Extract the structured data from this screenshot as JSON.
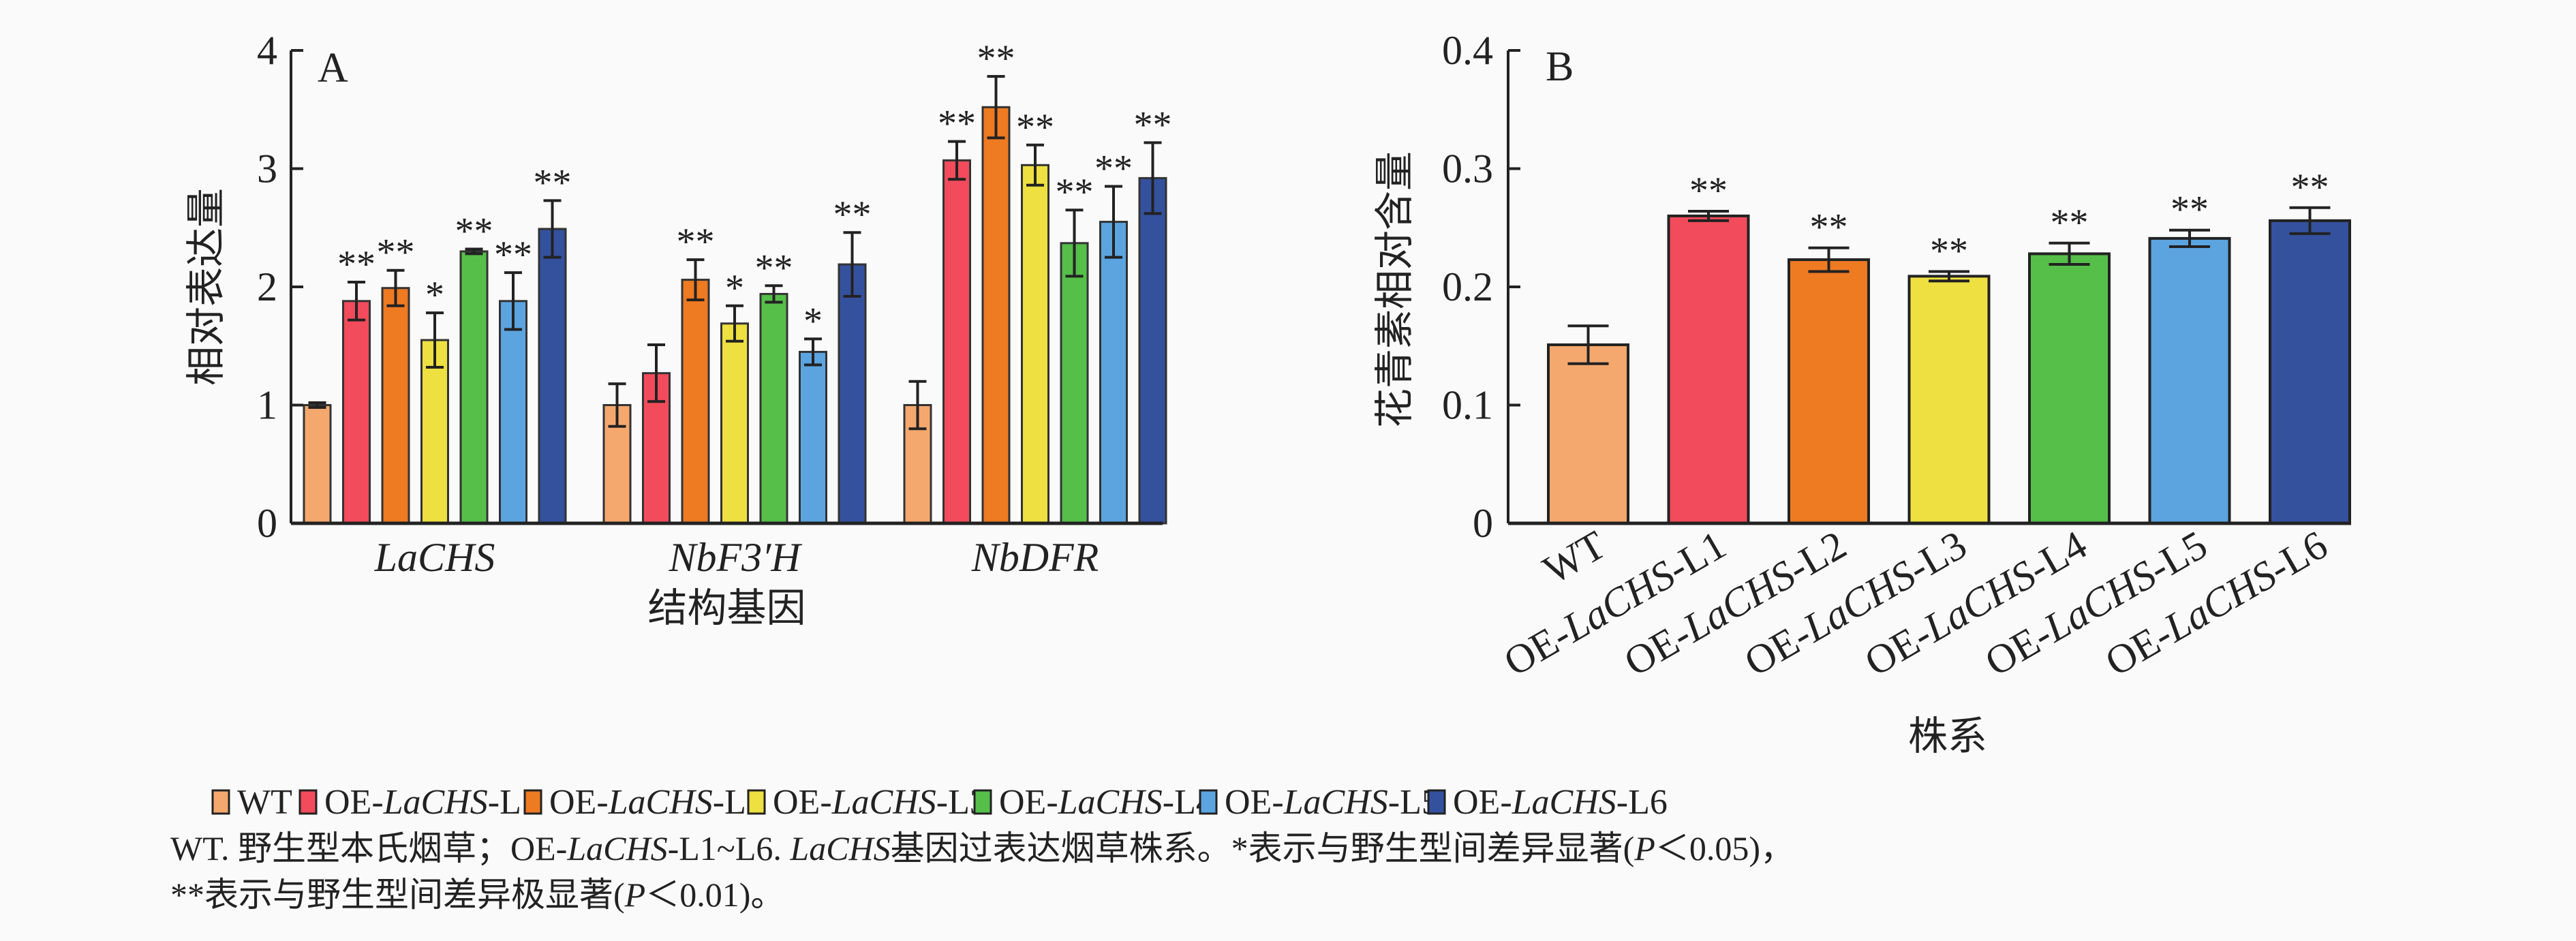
{
  "colors": {
    "WT": "#F5A86E",
    "OE-LaCHS-L1": "#F24B5B",
    "OE-LaCHS-L2": "#EE7A22",
    "OE-LaCHS-L3": "#EEE040",
    "OE-LaCHS-L4": "#55BF4A",
    "OE-LaCHS-L5": "#5BA4E0",
    "OE-LaCHS-L6": "#34519E"
  },
  "chart_data": [
    {
      "type": "bar",
      "panel_label": "A",
      "xlabel": "结构基因",
      "ylabel": "相对表达量",
      "ylim": [
        0,
        4
      ],
      "yticks": [
        0,
        1,
        2,
        3,
        4
      ],
      "categories": [
        "LaCHS",
        "NbF3′H",
        "NbDFR"
      ],
      "series": [
        {
          "name": "WT",
          "values": [
            1.0,
            1.0,
            1.0
          ],
          "errors": [
            0.02,
            0.18,
            0.2
          ],
          "sig": [
            "",
            "",
            ""
          ]
        },
        {
          "name": "OE-LaCHS-L1",
          "values": [
            1.88,
            1.27,
            3.07
          ],
          "errors": [
            0.16,
            0.24,
            0.16
          ],
          "sig": [
            "**",
            "",
            "**"
          ]
        },
        {
          "name": "OE-LaCHS-L2",
          "values": [
            1.99,
            2.06,
            3.52
          ],
          "errors": [
            0.15,
            0.17,
            0.26
          ],
          "sig": [
            "**",
            "**",
            "**"
          ]
        },
        {
          "name": "OE-LaCHS-L3",
          "values": [
            1.55,
            1.69,
            3.03
          ],
          "errors": [
            0.23,
            0.15,
            0.17
          ],
          "sig": [
            "*",
            "*",
            "**"
          ]
        },
        {
          "name": "OE-LaCHS-L4",
          "values": [
            2.3,
            1.94,
            2.37
          ],
          "errors": [
            0.02,
            0.07,
            0.28
          ],
          "sig": [
            "**",
            "**",
            "**"
          ]
        },
        {
          "name": "OE-LaCHS-L5",
          "values": [
            1.88,
            1.45,
            2.55
          ],
          "errors": [
            0.24,
            0.11,
            0.3
          ],
          "sig": [
            "**",
            "*",
            "**"
          ]
        },
        {
          "name": "OE-LaCHS-L6",
          "values": [
            2.49,
            2.19,
            2.92
          ],
          "errors": [
            0.24,
            0.27,
            0.3
          ],
          "sig": [
            "**",
            "**",
            "**"
          ]
        }
      ]
    },
    {
      "type": "bar",
      "panel_label": "B",
      "xlabel": "株系",
      "ylabel": "花青素相对含量",
      "ylim": [
        0,
        0.4
      ],
      "yticks": [
        "0",
        "0.1",
        "0.2",
        "0.3",
        "0.4"
      ],
      "categories": [
        "WT",
        "OE-LaCHS-L1",
        "OE-LaCHS-L2",
        "OE-LaCHS-L3",
        "OE-LaCHS-L4",
        "OE-LaCHS-L5",
        "OE-LaCHS-L6"
      ],
      "values": [
        0.151,
        0.26,
        0.223,
        0.209,
        0.228,
        0.241,
        0.256
      ],
      "errors": [
        0.016,
        0.004,
        0.01,
        0.004,
        0.009,
        0.007,
        0.011
      ],
      "sig": [
        "",
        "**",
        "**",
        "**",
        "**",
        "**",
        "**"
      ]
    }
  ],
  "legend": {
    "placement": "bottom",
    "items": [
      "WT",
      "OE-LaCHS-L1",
      "OE-LaCHS-L2",
      "OE-LaCHS-L3",
      "OE-LaCHS-L4",
      "OE-LaCHS-L5",
      "OE-LaCHS-L6"
    ]
  },
  "caption": {
    "lines": [
      [
        {
          "t": "WT. 野生型本氏烟草；OE-",
          "i": false
        },
        {
          "t": "LaCHS",
          "i": true
        },
        {
          "t": "-L1~L6. ",
          "i": false
        },
        {
          "t": "LaCHS",
          "i": true
        },
        {
          "t": "基因过表达烟草株系。*表示与野生型间差异显著(",
          "i": false
        },
        {
          "t": "P",
          "i": true
        },
        {
          "t": "＜0.05)，",
          "i": false
        }
      ],
      [
        {
          "t": "**表示与野生型间差异极显著(",
          "i": false
        },
        {
          "t": "P",
          "i": true
        },
        {
          "t": "＜0.01)。",
          "i": false
        }
      ]
    ]
  }
}
